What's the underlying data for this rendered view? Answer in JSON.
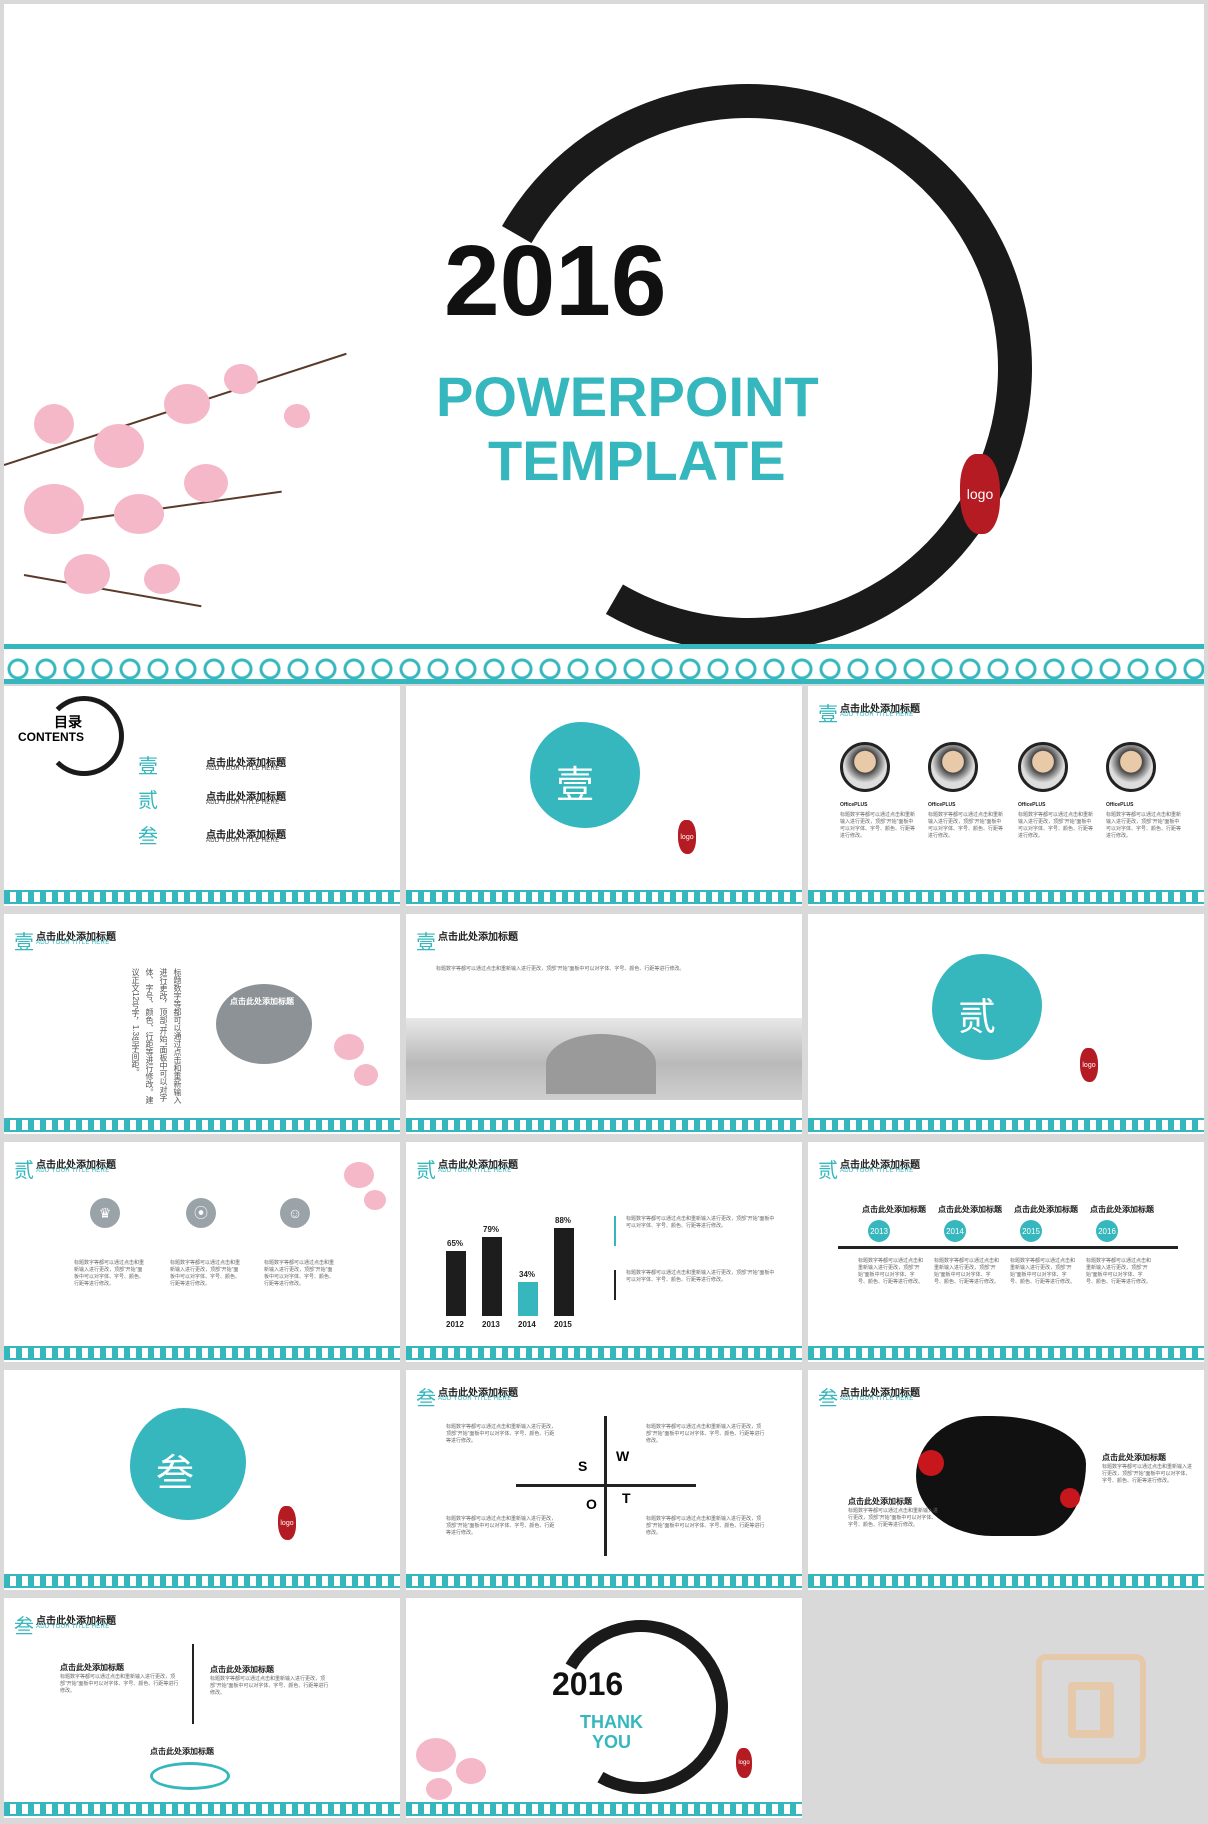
{
  "hero": {
    "year": "2016",
    "line1": "POWERPOINT",
    "line2": "TEMPLATE",
    "seal": "logo"
  },
  "contents": {
    "heading_cn": "目录",
    "heading_en": "CONTENTS",
    "items": [
      {
        "num": "壹",
        "title": "点击此处添加标题",
        "sub": "ADD YOUR TITLE HERE"
      },
      {
        "num": "贰",
        "title": "点击此处添加标题",
        "sub": "ADD YOUR TITLE HERE"
      },
      {
        "num": "叁",
        "title": "点击此处添加标题",
        "sub": "ADD YOUR TITLE HERE"
      }
    ]
  },
  "section": {
    "one": "壹",
    "two": "贰",
    "three": "叁",
    "seal": "logo"
  },
  "slide_title": {
    "text": "点击此处添加标题",
    "sub": "ADD YOUR TITLE HERE"
  },
  "team": {
    "name": "OfficePLUS",
    "blurb": "点击此处添加标题"
  },
  "body_text": "标题数字等都可以通过点击和重新输入进行更改，顶部“开始”面板中可以对字体、字号、颜色、行距等进行修改。",
  "vertical_text": "标题数字等都可以通过点击和重新输入进行更改，顶部“开始”面板中可以对字体、字号、颜色、行距等进行修改。建议正文12号字，1.3倍字间距。",
  "gray_bubble_title": "点击此处添加标题",
  "chart_data": {
    "type": "bar",
    "categories": [
      "2012",
      "2013",
      "2014",
      "2015"
    ],
    "values": [
      65,
      79,
      34,
      88
    ],
    "labels": [
      "65%",
      "79%",
      "34%",
      "88%"
    ],
    "highlight_index": 2,
    "colors": {
      "normal": "#1d1d1d",
      "highlight": "#35b7bd"
    }
  },
  "timeline": {
    "years": [
      "2013",
      "2014",
      "2015",
      "2016"
    ],
    "title": "点击此处添加标题"
  },
  "swot": {
    "s": "S",
    "w": "W",
    "o": "O",
    "t": "T"
  },
  "map": {
    "title_left": "点击此处添加标题",
    "title_right": "点击此处添加标题"
  },
  "closing": {
    "year": "2016",
    "line1": "THANK",
    "line2": "YOU",
    "seal": "logo"
  },
  "colors": {
    "teal": "#35b7bd",
    "ink": "#1a1a1a",
    "seal_red": "#b51b22",
    "blossom": "#f4b8c8"
  }
}
